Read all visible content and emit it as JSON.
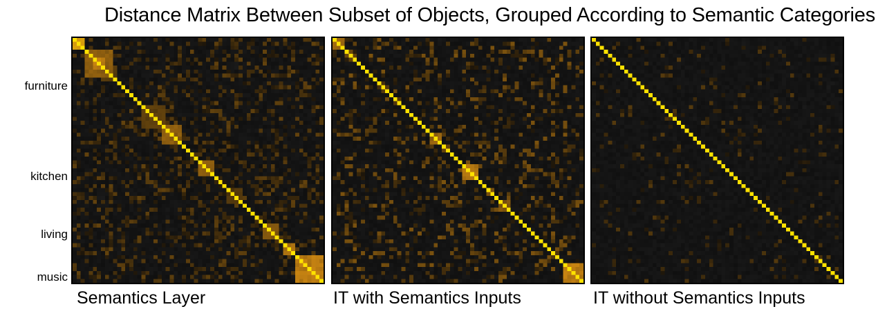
{
  "title": "Distance Matrix Between Subset of Objects, Grouped According to Semantic Categories",
  "panels": [
    {
      "caption": "Semantics Layer"
    },
    {
      "caption": "IT with Semantics Inputs"
    },
    {
      "caption": "IT without Semantics Inputs"
    }
  ],
  "row_labels": [
    "furniture",
    "kitchen",
    "living",
    "music"
  ],
  "colors": {
    "background": "#101010",
    "low": "#141414",
    "mid": "#b8720c",
    "high": "#ffe100"
  },
  "chart_data": [
    {
      "type": "heatmap",
      "title": "Semantics Layer",
      "matrix_size": 62,
      "diagonal": 1.0,
      "blocks": [
        {
          "start": 0,
          "end": 2,
          "value": 0.85
        },
        {
          "start": 3,
          "end": 9,
          "value": 0.55
        },
        {
          "start": 5,
          "end": 7,
          "value": 0.75
        },
        {
          "start": 17,
          "end": 22,
          "value": 0.35
        },
        {
          "start": 22,
          "end": 26,
          "value": 0.55
        },
        {
          "start": 31,
          "end": 34,
          "value": 0.55
        },
        {
          "start": 38,
          "end": 41,
          "value": 0.3
        },
        {
          "start": 47,
          "end": 50,
          "value": 0.5
        },
        {
          "start": 52,
          "end": 54,
          "value": 0.7
        },
        {
          "start": 55,
          "end": 61,
          "value": 0.75
        }
      ],
      "row_labels": [
        {
          "label": "furniture",
          "row": 11
        },
        {
          "label": "kitchen",
          "row": 34
        },
        {
          "label": "living",
          "row": 48
        },
        {
          "label": "music",
          "row": 59
        }
      ],
      "noise": 0.35,
      "density": 0.35
    },
    {
      "type": "heatmap",
      "title": "IT with Semantics Inputs",
      "matrix_size": 62,
      "diagonal": 1.0,
      "blocks": [
        {
          "start": 0,
          "end": 2,
          "value": 0.6
        },
        {
          "start": 24,
          "end": 26,
          "value": 0.6
        },
        {
          "start": 32,
          "end": 35,
          "value": 0.7
        },
        {
          "start": 41,
          "end": 43,
          "value": 0.5
        },
        {
          "start": 57,
          "end": 61,
          "value": 0.75
        }
      ],
      "noise": 0.45,
      "density": 0.28
    },
    {
      "type": "heatmap",
      "title": "IT without Semantics Inputs",
      "matrix_size": 62,
      "diagonal": 1.0,
      "blocks": [],
      "noise": 0.3,
      "density": 0.12
    }
  ]
}
